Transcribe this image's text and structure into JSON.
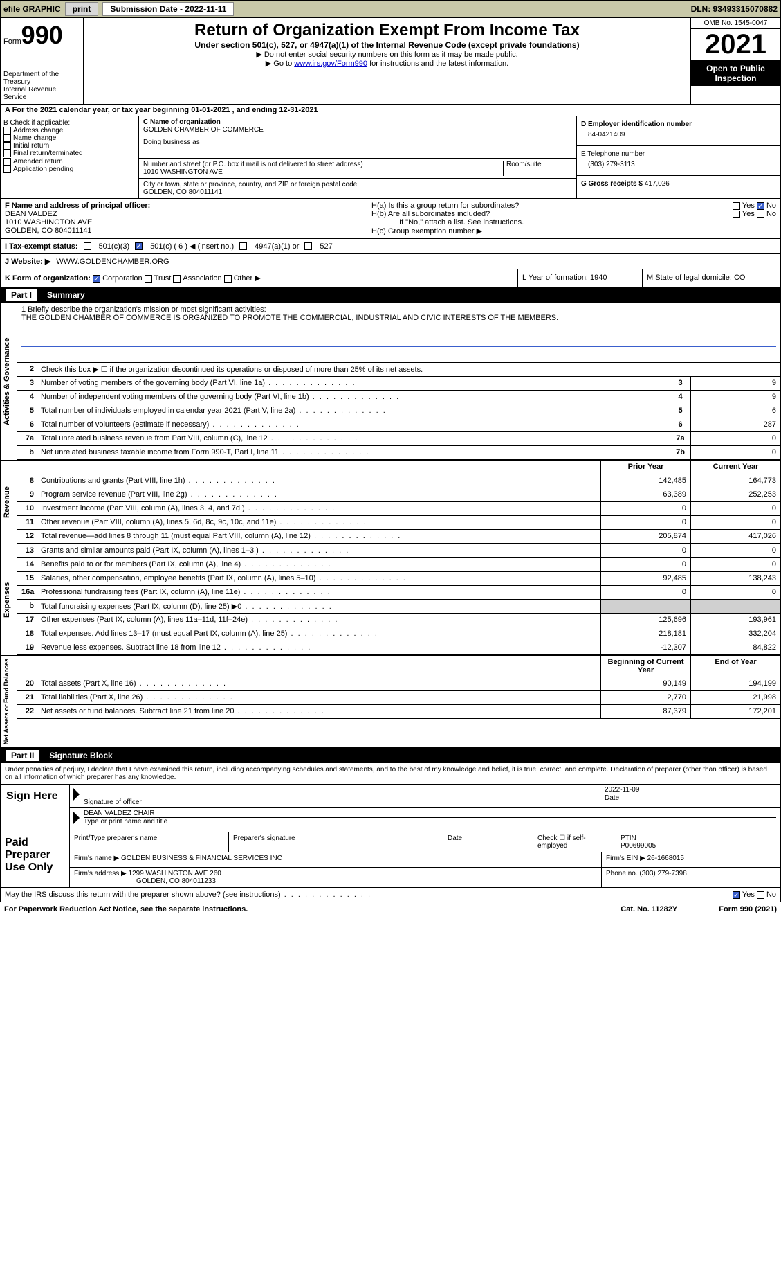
{
  "topbar": {
    "efile": "efile GRAPHIC",
    "print": "print",
    "subdate_label": "Submission Date - ",
    "subdate": "2022-11-11",
    "dln": "DLN: 93493315070882"
  },
  "header": {
    "form_label": "Form",
    "form_num": "990",
    "dept": "Department of the Treasury",
    "irs": "Internal Revenue Service",
    "title": "Return of Organization Exempt From Income Tax",
    "sub": "Under section 501(c), 527, or 4947(a)(1) of the Internal Revenue Code (except private foundations)",
    "note1": "▶ Do not enter social security numbers on this form as it may be made public.",
    "note2_pre": "▶ Go to ",
    "note2_link": "www.irs.gov/Form990",
    "note2_post": " for instructions and the latest information.",
    "omb": "OMB No. 1545-0047",
    "year": "2021",
    "inspect": "Open to Public Inspection"
  },
  "row_a": "A For the 2021 calendar year, or tax year beginning 01-01-2021    , and ending 12-31-2021",
  "section_b": {
    "label": "B Check if applicable:",
    "opts": [
      "Address change",
      "Name change",
      "Initial return",
      "Final return/terminated",
      "Amended return",
      "Application pending"
    ]
  },
  "section_c": {
    "name_label": "C Name of organization",
    "name": "GOLDEN CHAMBER OF COMMERCE",
    "dba_label": "Doing business as",
    "dba": "",
    "addr_label": "Number and street (or P.O. box if mail is not delivered to street address)",
    "room_label": "Room/suite",
    "addr": "1010 WASHINGTON AVE",
    "city_label": "City or town, state or province, country, and ZIP or foreign postal code",
    "city": "GOLDEN, CO  804011141"
  },
  "section_d": {
    "ein_label": "D Employer identification number",
    "ein": "84-0421409",
    "phone_label": "E Telephone number",
    "phone": "(303) 279-3113",
    "gross_label": "G Gross receipts $ ",
    "gross": "417,026"
  },
  "section_f": {
    "label": "F Name and address of principal officer:",
    "name": "DEAN VALDEZ",
    "addr1": "1010 WASHINGTON AVE",
    "addr2": "GOLDEN, CO  804011141"
  },
  "section_h": {
    "ha": "H(a)  Is this a group return for subordinates?",
    "hb": "H(b)  Are all subordinates included?",
    "hb_note": "If \"No,\" attach a list. See instructions.",
    "hc": "H(c)  Group exemption number ▶"
  },
  "row_i": {
    "label": "I   Tax-exempt status:",
    "opt1": "501(c)(3)",
    "opt2_pre": "501(c) ( ",
    "opt2_num": "6",
    "opt2_post": " ) ◀ (insert no.)",
    "opt3": "4947(a)(1) or",
    "opt4": "527"
  },
  "row_j": {
    "label": "J   Website: ▶",
    "value": "WWW.GOLDENCHAMBER.ORG"
  },
  "row_k": {
    "label": "K Form of organization:",
    "opts": [
      "Corporation",
      "Trust",
      "Association",
      "Other ▶"
    ],
    "l": "L Year of formation: 1940",
    "m": "M State of legal domicile: CO"
  },
  "part1": {
    "label": "Part I",
    "title": "Summary"
  },
  "mission": {
    "q": "1   Briefly describe the organization's mission or most significant activities:",
    "text": "THE GOLDEN CHAMBER OF COMMERCE IS ORGANIZED TO PROMOTE THE COMMERCIAL, INDUSTRIAL AND CIVIC INTERESTS OF THE MEMBERS."
  },
  "activities": [
    {
      "n": "2",
      "d": "Check this box ▶ ☐ if the organization discontinued its operations or disposed of more than 25% of its net assets.",
      "b": "",
      "v": ""
    },
    {
      "n": "3",
      "d": "Number of voting members of the governing body (Part VI, line 1a)",
      "b": "3",
      "v": "9"
    },
    {
      "n": "4",
      "d": "Number of independent voting members of the governing body (Part VI, line 1b)",
      "b": "4",
      "v": "9"
    },
    {
      "n": "5",
      "d": "Total number of individuals employed in calendar year 2021 (Part V, line 2a)",
      "b": "5",
      "v": "6"
    },
    {
      "n": "6",
      "d": "Total number of volunteers (estimate if necessary)",
      "b": "6",
      "v": "287"
    },
    {
      "n": "7a",
      "d": "Total unrelated business revenue from Part VIII, column (C), line 12",
      "b": "7a",
      "v": "0"
    },
    {
      "n": "b",
      "d": "Net unrelated business taxable income from Form 990-T, Part I, line 11",
      "b": "7b",
      "v": "0"
    }
  ],
  "vtabs": {
    "ag": "Activities & Governance",
    "rev": "Revenue",
    "exp": "Expenses",
    "na": "Net Assets or Fund Balances"
  },
  "cols": {
    "prior": "Prior Year",
    "current": "Current Year"
  },
  "revenue": [
    {
      "n": "8",
      "d": "Contributions and grants (Part VIII, line 1h)",
      "p": "142,485",
      "c": "164,773"
    },
    {
      "n": "9",
      "d": "Program service revenue (Part VIII, line 2g)",
      "p": "63,389",
      "c": "252,253"
    },
    {
      "n": "10",
      "d": "Investment income (Part VIII, column (A), lines 3, 4, and 7d )",
      "p": "0",
      "c": "0"
    },
    {
      "n": "11",
      "d": "Other revenue (Part VIII, column (A), lines 5, 6d, 8c, 9c, 10c, and 11e)",
      "p": "0",
      "c": "0"
    },
    {
      "n": "12",
      "d": "Total revenue—add lines 8 through 11 (must equal Part VIII, column (A), line 12)",
      "p": "205,874",
      "c": "417,026"
    }
  ],
  "expenses": [
    {
      "n": "13",
      "d": "Grants and similar amounts paid (Part IX, column (A), lines 1–3 )",
      "p": "0",
      "c": "0"
    },
    {
      "n": "14",
      "d": "Benefits paid to or for members (Part IX, column (A), line 4)",
      "p": "0",
      "c": "0"
    },
    {
      "n": "15",
      "d": "Salaries, other compensation, employee benefits (Part IX, column (A), lines 5–10)",
      "p": "92,485",
      "c": "138,243"
    },
    {
      "n": "16a",
      "d": "Professional fundraising fees (Part IX, column (A), line 11e)",
      "p": "0",
      "c": "0"
    },
    {
      "n": "b",
      "d": "Total fundraising expenses (Part IX, column (D), line 25) ▶0",
      "p": "",
      "c": "",
      "shade": true
    },
    {
      "n": "17",
      "d": "Other expenses (Part IX, column (A), lines 11a–11d, 11f–24e)",
      "p": "125,696",
      "c": "193,961"
    },
    {
      "n": "18",
      "d": "Total expenses. Add lines 13–17 (must equal Part IX, column (A), line 25)",
      "p": "218,181",
      "c": "332,204"
    },
    {
      "n": "19",
      "d": "Revenue less expenses. Subtract line 18 from line 12",
      "p": "-12,307",
      "c": "84,822"
    }
  ],
  "cols2": {
    "begin": "Beginning of Current Year",
    "end": "End of Year"
  },
  "netassets": [
    {
      "n": "20",
      "d": "Total assets (Part X, line 16)",
      "p": "90,149",
      "c": "194,199"
    },
    {
      "n": "21",
      "d": "Total liabilities (Part X, line 26)",
      "p": "2,770",
      "c": "21,998"
    },
    {
      "n": "22",
      "d": "Net assets or fund balances. Subtract line 21 from line 20",
      "p": "87,379",
      "c": "172,201"
    }
  ],
  "part2": {
    "label": "Part II",
    "title": "Signature Block"
  },
  "sig": {
    "decl": "Under penalties of perjury, I declare that I have examined this return, including accompanying schedules and statements, and to the best of my knowledge and belief, it is true, correct, and complete. Declaration of preparer (other than officer) is based on all information of which preparer has any knowledge.",
    "here": "Sign Here",
    "sig_label": "Signature of officer",
    "date": "2022-11-09",
    "date_label": "Date",
    "name": "DEAN VALDEZ CHAIR",
    "name_label": "Type or print name and title"
  },
  "prep": {
    "title": "Paid Preparer Use Only",
    "h1": "Print/Type preparer's name",
    "h2": "Preparer's signature",
    "h3": "Date",
    "h4": "Check ☐ if self-employed",
    "h5": "PTIN",
    "ptin": "P00699005",
    "firm_label": "Firm's name    ▶ ",
    "firm": "GOLDEN BUSINESS & FINANCIAL SERVICES INC",
    "ein_label": "Firm's EIN ▶ ",
    "ein": "26-1668015",
    "addr_label": "Firm's address ▶ ",
    "addr": "1299 WASHINGTON AVE 260",
    "addr2": "GOLDEN, CO  804011233",
    "phone_label": "Phone no. ",
    "phone": "(303) 279-7398"
  },
  "discuss": "May the IRS discuss this return with the preparer shown above? (see instructions)",
  "footer": {
    "paperwork": "For Paperwork Reduction Act Notice, see the separate instructions.",
    "cat": "Cat. No. 11282Y",
    "form": "Form 990 (2021)"
  }
}
